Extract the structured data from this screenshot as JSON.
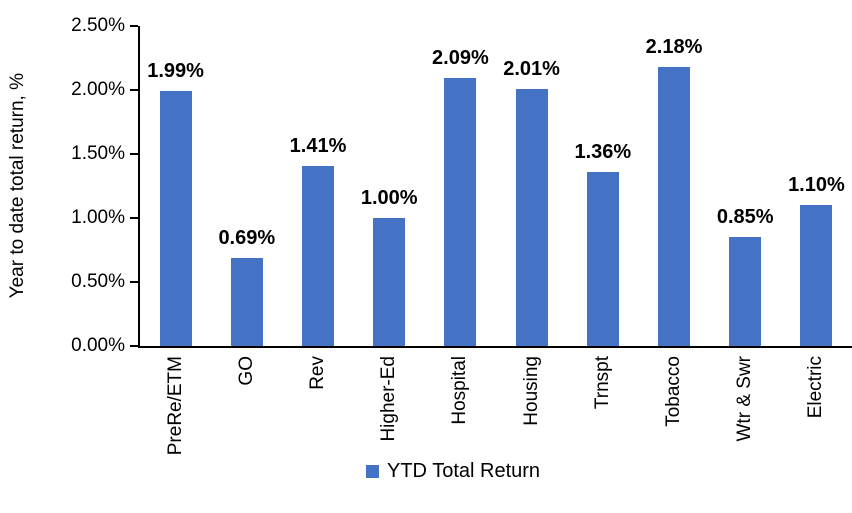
{
  "chart_data": {
    "type": "bar",
    "title": "",
    "xlabel": "",
    "ylabel": "Year to date total return, %",
    "categories": [
      "PreRe/ETM",
      "GO",
      "Rev",
      "Higher-Ed",
      "Hospital",
      "Housing",
      "Trnspt",
      "Tobacco",
      "Wtr & Swr",
      "Electric"
    ],
    "values": [
      1.99,
      0.69,
      1.41,
      1.0,
      2.09,
      2.01,
      1.36,
      2.18,
      0.85,
      1.1
    ],
    "value_labels": [
      "1.99%",
      "0.69%",
      "1.41%",
      "1.00%",
      "2.09%",
      "2.01%",
      "1.36%",
      "2.18%",
      "0.85%",
      "1.10%"
    ],
    "yticks": [
      "0.00%",
      "0.50%",
      "1.00%",
      "1.50%",
      "2.00%",
      "2.50%"
    ],
    "ylim": [
      0,
      2.5
    ],
    "grid": false,
    "legend_label": "YTD Total Return",
    "legend_position": "bottom",
    "bar_color": "#4472C4",
    "axis_color": "#000000",
    "text_color": "#000000"
  }
}
